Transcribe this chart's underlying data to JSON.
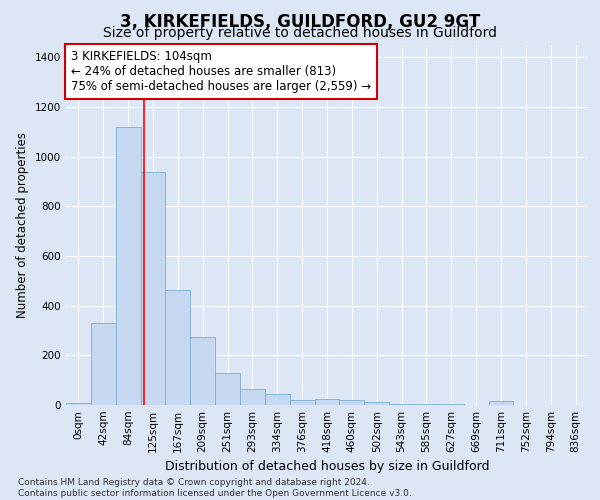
{
  "title": "3, KIRKEFIELDS, GUILDFORD, GU2 9GT",
  "subtitle": "Size of property relative to detached houses in Guildford",
  "xlabel": "Distribution of detached houses by size in Guildford",
  "ylabel": "Number of detached properties",
  "categories": [
    "0sqm",
    "42sqm",
    "84sqm",
    "125sqm",
    "167sqm",
    "209sqm",
    "251sqm",
    "293sqm",
    "334sqm",
    "376sqm",
    "418sqm",
    "460sqm",
    "502sqm",
    "543sqm",
    "585sqm",
    "627sqm",
    "669sqm",
    "711sqm",
    "752sqm",
    "794sqm",
    "836sqm"
  ],
  "values": [
    10,
    330,
    1120,
    940,
    465,
    275,
    130,
    65,
    45,
    20,
    25,
    20,
    12,
    5,
    3,
    3,
    2,
    15,
    0,
    0,
    0
  ],
  "bar_color": "#c5d8ef",
  "bar_edge_color": "#7aafd4",
  "red_line_x": 2.62,
  "annotation_text": "3 KIRKEFIELDS: 104sqm\n← 24% of detached houses are smaller (813)\n75% of semi-detached houses are larger (2,559) →",
  "annotation_box_color": "#ffffff",
  "annotation_box_edge": "#cc0000",
  "ylim": [
    0,
    1450
  ],
  "yticks": [
    0,
    200,
    400,
    600,
    800,
    1000,
    1200,
    1400
  ],
  "bg_color": "#dce6f5",
  "plot_bg_color": "#dce6f5",
  "grid_color": "#ffffff",
  "footnote": "Contains HM Land Registry data © Crown copyright and database right 2024.\nContains public sector information licensed under the Open Government Licence v3.0.",
  "title_fontsize": 12,
  "subtitle_fontsize": 10,
  "xlabel_fontsize": 9,
  "ylabel_fontsize": 8.5,
  "tick_fontsize": 7.5,
  "annot_fontsize": 8.5,
  "footnote_fontsize": 6.5
}
